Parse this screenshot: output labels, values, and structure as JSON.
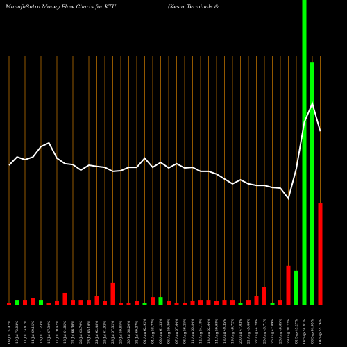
{
  "chart_data": {
    "type": "bar_line",
    "title": "MunafaSutra  Money Flow  Charts for KTIL",
    "subtitle": "(Kesar Terminals &",
    "categories": [
      "09 Jul 74.97%",
      "10 Jul 72.03%",
      "11 Jul 73.61%",
      "14 Jul 69.15%",
      "15 Jul 71.23%",
      "16 Jul 67.90%",
      "17 Jul 70.42%",
      "18 Jul 64.85%",
      "21 Jul 66.30%",
      "22 Jul 63.79%",
      "23 Jul 65.10%",
      "24 Jul 62.48%",
      "25 Jul 61.92%",
      "28 Jul 57.32%",
      "29 Jul 59.65%",
      "30 Jul 58.20%",
      "31 Jul 60.37%",
      "01 Aug 62.92%",
      "04 Aug 58.77%",
      "05 Aug 61.33%",
      "06 Aug 59.80%",
      "07 Aug 57.64%",
      "08 Aug 56.25%",
      "11 Aug 55.84%",
      "12 Aug 54.18%",
      "13 Aug 52.64%",
      "14 Aug 50.98%",
      "18 Aug 49.35%",
      "19 Aug 48.72%",
      "20 Aug 47.03%",
      "21 Aug 45.66%",
      "22 Aug 44.28%",
      "25 Aug 43.71%",
      "26 Aug 42.09%",
      "28 Aug 40.85%",
      "29 Aug 38.72%",
      "01 Sep 43.27%",
      "02 Sep 58.91%",
      "03 Sep 64.05%",
      "04 Sep 55.76%"
    ],
    "bar_values": [
      0.7,
      1.8,
      1.8,
      2.3,
      1.8,
      0.9,
      1.6,
      4.1,
      1.8,
      1.8,
      1.8,
      3.0,
      1.4,
      7.3,
      0.9,
      0.7,
      1.4,
      0.7,
      2.7,
      2.7,
      1.6,
      0.7,
      0.9,
      1.6,
      1.8,
      1.8,
      1.4,
      1.8,
      1.8,
      0.7,
      1.8,
      3.0,
      6.1,
      0.9,
      1.8,
      13.0,
      11.4,
      100,
      79.5,
      33.4
    ],
    "bar_colors": [
      "#ff0000",
      "#00ff00",
      "#ff0000",
      "#ff0000",
      "#00ff00",
      "#ff0000",
      "#ff0000",
      "#ff0000",
      "#ff0000",
      "#ff0000",
      "#ff0000",
      "#ff0000",
      "#ff0000",
      "#ff0000",
      "#ff0000",
      "#ff0000",
      "#ff0000",
      "#00ff00",
      "#ff0000",
      "#00ff00",
      "#ff0000",
      "#ff0000",
      "#ff0000",
      "#ff0000",
      "#ff0000",
      "#ff0000",
      "#ff0000",
      "#ff0000",
      "#ff0000",
      "#00ff00",
      "#ff0000",
      "#ff0000",
      "#ff0000",
      "#00ff00",
      "#ff0000",
      "#ff0000",
      "#00ff00",
      "#00ff00",
      "#00ff00",
      "#ff0000"
    ],
    "line_values": [
      45.9,
      48.6,
      47.7,
      48.6,
      52.0,
      53.2,
      48.2,
      46.4,
      46.1,
      44.3,
      45.9,
      45.5,
      45.2,
      43.9,
      44.1,
      45.2,
      45.2,
      48.2,
      45.2,
      46.8,
      45.0,
      46.4,
      45.0,
      45.2,
      43.9,
      43.9,
      43.0,
      41.4,
      39.8,
      41.1,
      39.8,
      39.3,
      39.3,
      38.6,
      38.4,
      35.0,
      44.8,
      60.0,
      66.1,
      57.0
    ],
    "line_color": "#ffffff",
    "grid_color": "#b86e00",
    "ylim": [
      0,
      100
    ]
  }
}
